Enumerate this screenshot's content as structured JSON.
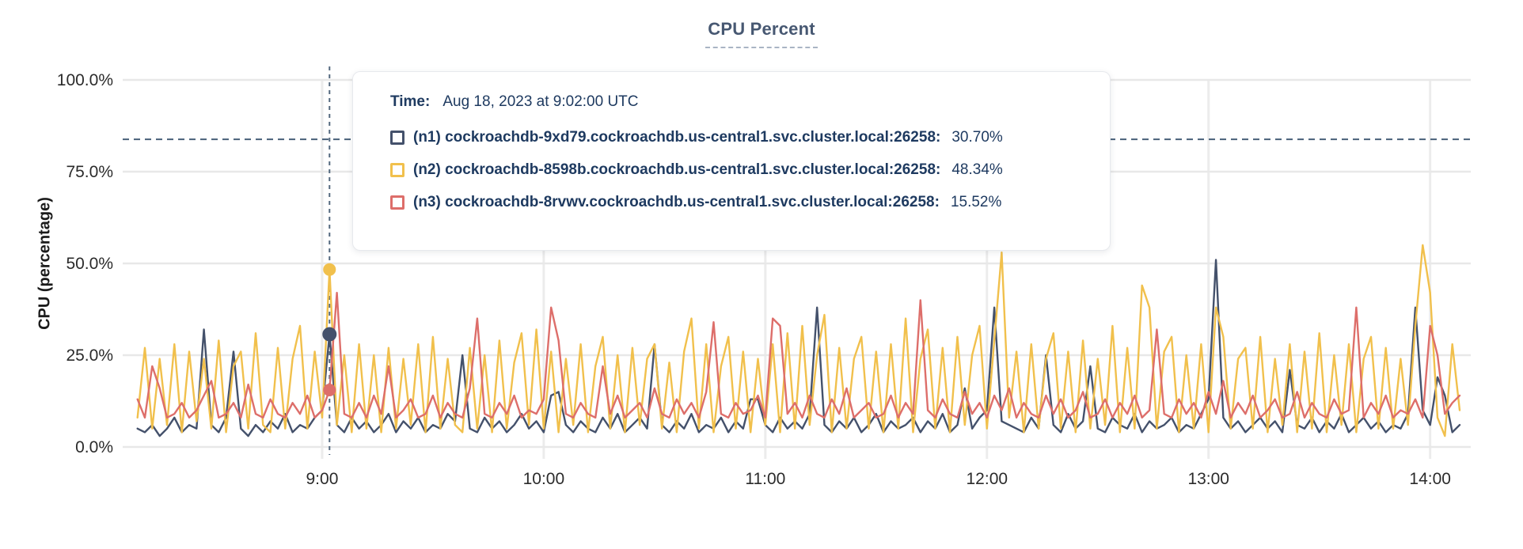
{
  "tooltip": {
    "time_label": "Time:",
    "time_value": "Aug 18, 2023 at 9:02:00 UTC",
    "series": [
      {
        "id": "n1",
        "label": "(n1) cockroachdb-9xd79.cockroachdb.us-central1.svc.cluster.local:26258:",
        "value": "30.70%"
      },
      {
        "id": "n2",
        "label": "(n2) cockroachdb-8598b.cockroachdb.us-central1.svc.cluster.local:26258:",
        "value": "48.34%"
      },
      {
        "id": "n3",
        "label": "(n3) cockroachdb-8rvwv.cockroachdb.us-central1.svc.cluster.local:26258:",
        "value": "15.52%"
      }
    ]
  },
  "chart_data": {
    "type": "line",
    "title": "CPU Percent",
    "ylabel": "CPU (percentage)",
    "grid": "on",
    "colors": {
      "grid_vertical": "#ececec",
      "grid_horizontal": "#e8e8e8",
      "crosshair": "#53687e",
      "threshold": "#486079",
      "axis_text": "#2b2b2b",
      "tooltip_text": "#1e3a60",
      "title": "#475872"
    },
    "y_axis": {
      "min": 0,
      "max": 100,
      "ticks": [
        {
          "value": 0,
          "label": "0.0%"
        },
        {
          "value": 25,
          "label": "25.0%"
        },
        {
          "value": 50,
          "label": "50.0%"
        },
        {
          "value": 75,
          "label": "75.0%"
        },
        {
          "value": 100,
          "label": "100.0%"
        }
      ]
    },
    "x_axis": {
      "unit": "minute-of-day",
      "min": 486,
      "max": 851,
      "ticks": [
        {
          "minute": 540,
          "label": "9:00"
        },
        {
          "minute": 600,
          "label": "10:00"
        },
        {
          "minute": 660,
          "label": "11:00"
        },
        {
          "minute": 720,
          "label": "12:00"
        },
        {
          "minute": 780,
          "label": "13:00"
        },
        {
          "minute": 840,
          "label": "14:00"
        }
      ]
    },
    "threshold_line_value": 83.8,
    "hover": {
      "minute": 542,
      "time_text": "Aug 18, 2023 at 9:02:00 UTC",
      "points": [
        {
          "series": "n2",
          "value": 48.34,
          "r": 8
        },
        {
          "series": "n1",
          "value": 30.7,
          "r": 9
        },
        {
          "series": "n3",
          "value": 15.52,
          "r": 8
        }
      ]
    },
    "series": [
      {
        "id": "n1",
        "name": "cockroachdb-9xd79.cockroachdb.us-central1.svc.cluster.local:26258",
        "color": "#44516b",
        "t_start": 490,
        "t_step": 2,
        "values": [
          5,
          4,
          6,
          3,
          5,
          8,
          4,
          6,
          5,
          32,
          6,
          4,
          8,
          26,
          5,
          3,
          6,
          4,
          7,
          5,
          9,
          4,
          6,
          5,
          8,
          10,
          30.7,
          6,
          4,
          8,
          5,
          7,
          4,
          6,
          9,
          4,
          7,
          5,
          8,
          4,
          6,
          5,
          9,
          7,
          25,
          5,
          4,
          8,
          5,
          7,
          4,
          6,
          9,
          5,
          7,
          4,
          14,
          15,
          6,
          4,
          7,
          5,
          4,
          8,
          5,
          9,
          4,
          6,
          8,
          5,
          28,
          6,
          4,
          7,
          5,
          9,
          4,
          6,
          5,
          8,
          4,
          7,
          5,
          13,
          13,
          6,
          4,
          8,
          5,
          7,
          5,
          9,
          38,
          6,
          4,
          7,
          5,
          8,
          4,
          6,
          9,
          4,
          7,
          5,
          6,
          8,
          4,
          7,
          5,
          9,
          4,
          6,
          16,
          5,
          8,
          10,
          38,
          7,
          6,
          5,
          4,
          8,
          5,
          25,
          6,
          4,
          9,
          5,
          7,
          22,
          5,
          4,
          8,
          6,
          5,
          9,
          4,
          7,
          5,
          6,
          8,
          4,
          6,
          5,
          9,
          13,
          51,
          8,
          5,
          7,
          4,
          6,
          8,
          5,
          7,
          4,
          21,
          6,
          5,
          8,
          4,
          7,
          5,
          9,
          4,
          6,
          8,
          5,
          7,
          4,
          6,
          5,
          9,
          38,
          10,
          6,
          19,
          14,
          4,
          6
        ]
      },
      {
        "id": "n2",
        "name": "cockroachdb-8598b.cockroachdb.us-central1.svc.cluster.local:26258",
        "color": "#f1c04c",
        "t_start": 490,
        "t_step": 2,
        "values": [
          8,
          27,
          5,
          24,
          6,
          28,
          4,
          26,
          7,
          24,
          5,
          29,
          4,
          22,
          26,
          5,
          31,
          6,
          4,
          27,
          5,
          24,
          33,
          5,
          26,
          8,
          48.3,
          6,
          25,
          4,
          28,
          5,
          25,
          4,
          27,
          5,
          24,
          6,
          28,
          4,
          30,
          5,
          24,
          6,
          4,
          27,
          5,
          25,
          4,
          29,
          5,
          23,
          31,
          6,
          32,
          5,
          26,
          4,
          24,
          6,
          28,
          4,
          22,
          30,
          5,
          25,
          4,
          27,
          6,
          24,
          28,
          5,
          23,
          4,
          26,
          35,
          5,
          28,
          4,
          22,
          30,
          5,
          26,
          4,
          24,
          6,
          28,
          4,
          31,
          5,
          33,
          6,
          25,
          36,
          4,
          27,
          5,
          24,
          30,
          5,
          26,
          4,
          28,
          5,
          35,
          4,
          24,
          32,
          5,
          27,
          4,
          30,
          6,
          25,
          33,
          5,
          29,
          53,
          8,
          26,
          4,
          28,
          5,
          24,
          31,
          5,
          26,
          4,
          29,
          5,
          24,
          6,
          33,
          4,
          27,
          5,
          44,
          38,
          5,
          26,
          30,
          4,
          25,
          5,
          28,
          4,
          38,
          30,
          5,
          24,
          27,
          5,
          30,
          4,
          24,
          6,
          28,
          4,
          26,
          5,
          31,
          4,
          25,
          6,
          28,
          4,
          24,
          30,
          5,
          27,
          5,
          24,
          6,
          33,
          55,
          42,
          8,
          3,
          28,
          10
        ]
      },
      {
        "id": "n3",
        "name": "cockroachdb-8rvwv.cockroachdb.us-central1.svc.cluster.local:26258",
        "color": "#dd6e6a",
        "t_start": 490,
        "t_step": 2,
        "values": [
          13,
          8,
          22,
          16,
          8,
          9,
          12,
          8,
          10,
          14,
          18,
          8,
          9,
          12,
          8,
          17,
          9,
          8,
          13,
          9,
          8,
          12,
          9,
          14,
          8,
          10,
          15.5,
          42,
          9,
          8,
          12,
          8,
          14,
          9,
          22,
          8,
          10,
          13,
          8,
          9,
          14,
          8,
          12,
          9,
          8,
          16,
          35,
          9,
          8,
          12,
          9,
          14,
          8,
          10,
          9,
          13,
          38,
          29,
          9,
          8,
          12,
          9,
          8,
          22,
          9,
          14,
          8,
          10,
          12,
          8,
          16,
          9,
          8,
          13,
          9,
          12,
          8,
          15,
          34,
          9,
          8,
          12,
          9,
          10,
          14,
          8,
          35,
          33,
          9,
          12,
          8,
          14,
          9,
          8,
          13,
          9,
          16,
          8,
          10,
          12,
          8,
          9,
          14,
          8,
          12,
          9,
          40,
          10,
          8,
          13,
          9,
          8,
          15,
          9,
          12,
          8,
          14,
          10,
          16,
          8,
          12,
          9,
          8,
          14,
          9,
          13,
          8,
          10,
          15,
          8,
          9,
          13,
          8,
          12,
          9,
          14,
          8,
          10,
          32,
          9,
          8,
          13,
          9,
          12,
          8,
          15,
          9,
          18,
          8,
          12,
          9,
          14,
          8,
          10,
          13,
          8,
          9,
          15,
          8,
          12,
          9,
          8,
          13,
          9,
          10,
          38,
          8,
          12,
          9,
          14,
          8,
          10,
          9,
          13,
          8,
          33,
          25,
          9,
          12,
          14
        ]
      }
    ]
  }
}
